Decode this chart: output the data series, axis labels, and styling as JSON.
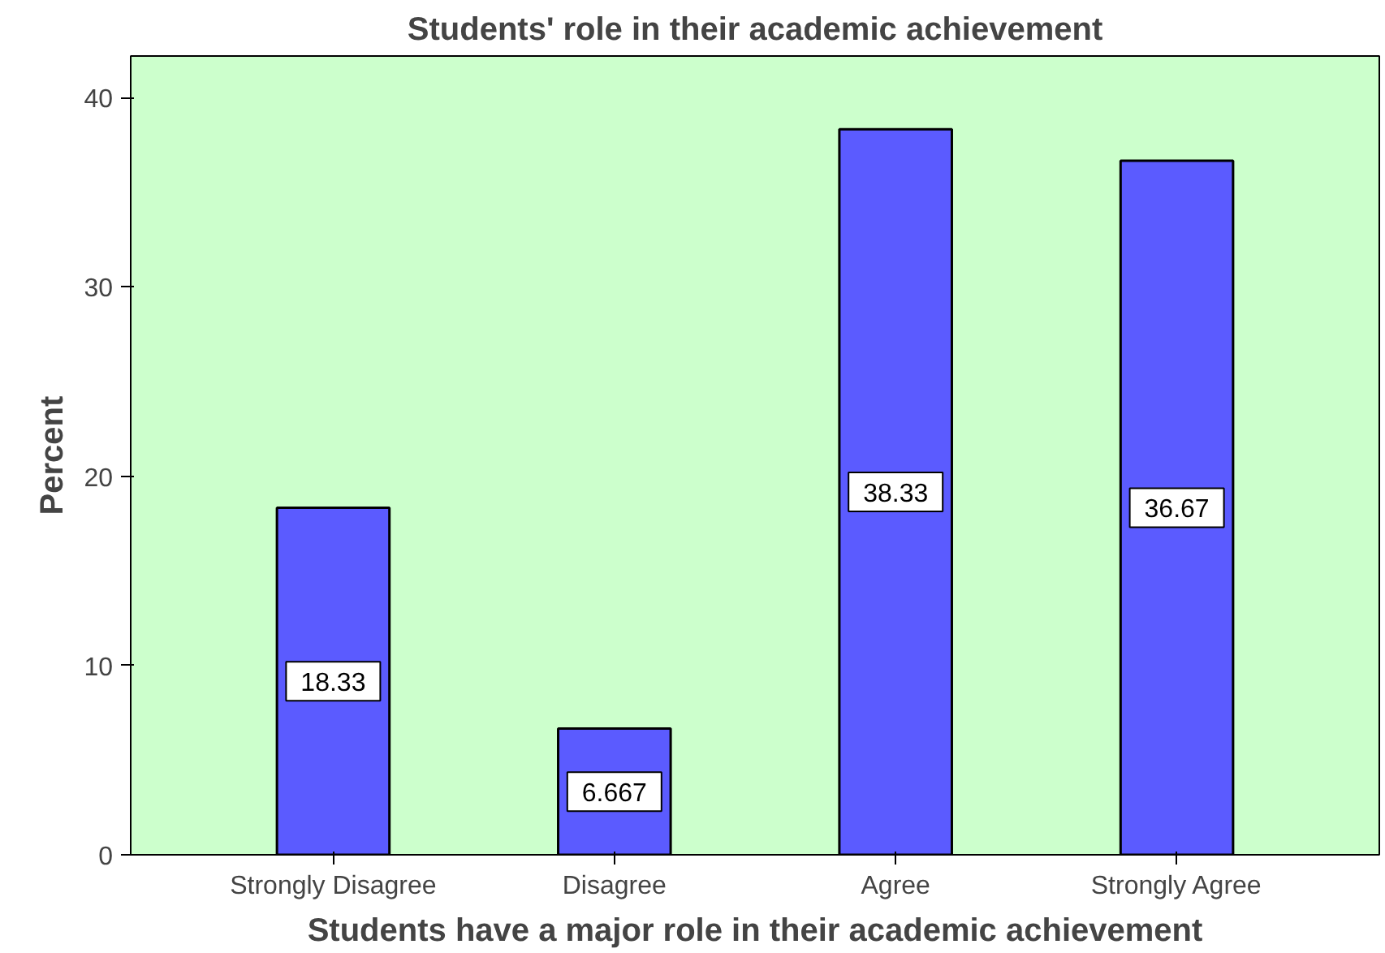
{
  "chart_data": {
    "type": "bar",
    "title": "Students' role in their academic achievement",
    "xlabel": "Students have a major role in their academic achievement",
    "ylabel": "Percent",
    "categories": [
      "Strongly Disagree",
      "Disagree",
      "Agree",
      "Strongly Agree"
    ],
    "values": [
      18.33,
      6.667,
      38.33,
      36.67
    ],
    "color": "#5b5bff",
    "ylim": [
      0,
      42.2
    ],
    "yticks": [
      0,
      10,
      20,
      30,
      40
    ],
    "grid": false,
    "data_labels": true
  }
}
